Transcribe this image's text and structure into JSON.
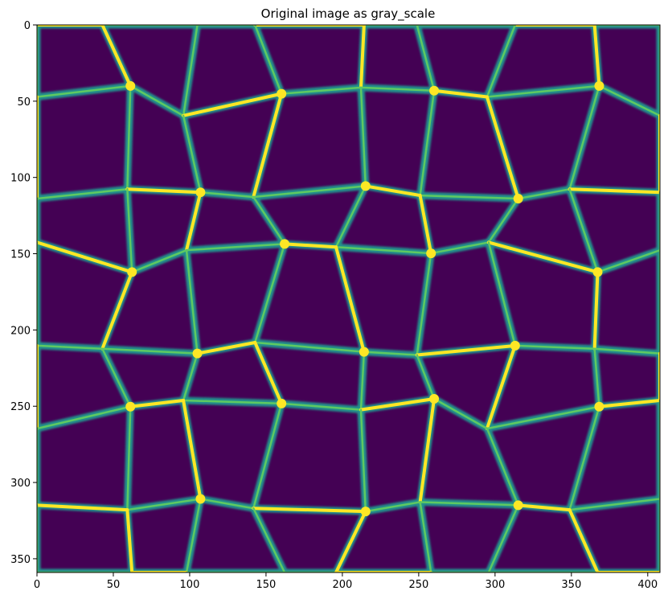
{
  "chart_data": {
    "type": "heatmap",
    "title": "Original image as gray_scale",
    "xlabel": "",
    "ylabel": "",
    "colormap": "viridis",
    "image_width": 408,
    "image_height": 359,
    "xlim": [
      0,
      408
    ],
    "ylim": [
      359,
      0
    ],
    "x_ticks": [
      0,
      50,
      100,
      150,
      200,
      250,
      300,
      350,
      400
    ],
    "y_ticks": [
      0,
      50,
      100,
      150,
      200,
      250,
      300,
      350
    ],
    "x_tick_labels": [
      "0",
      "50",
      "100",
      "150",
      "200",
      "250",
      "300",
      "350",
      "400"
    ],
    "y_tick_labels": [
      "0",
      "50",
      "100",
      "150",
      "200",
      "250",
      "300",
      "350"
    ],
    "grid": false,
    "colors": {
      "background_cell": "#440154",
      "boundary_mid": "#21918c",
      "boundary_high": "#5ec962",
      "boundary_peak": "#fde725"
    }
  }
}
